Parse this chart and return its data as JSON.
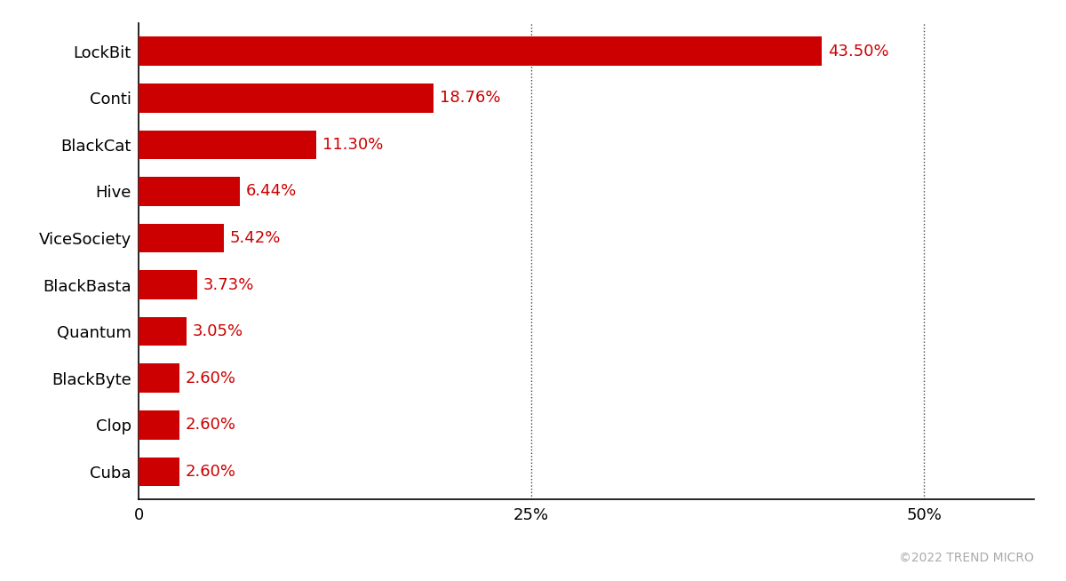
{
  "categories": [
    "Cuba",
    "Clop",
    "BlackByte",
    "Quantum",
    "BlackBasta",
    "ViceSociety",
    "Hive",
    "BlackCat",
    "Conti",
    "LockBit"
  ],
  "values": [
    2.6,
    2.6,
    2.6,
    3.05,
    3.73,
    5.42,
    6.44,
    11.3,
    18.76,
    43.5
  ],
  "labels": [
    "2.60%",
    "2.60%",
    "2.60%",
    "3.05%",
    "3.73%",
    "5.42%",
    "6.44%",
    "11.30%",
    "18.76%",
    "43.50%"
  ],
  "bar_color": "#cc0000",
  "label_color": "#cc0000",
  "background_color": "#ffffff",
  "xticks": [
    0,
    25,
    50
  ],
  "xtick_labels": [
    "0",
    "25%",
    "50%"
  ],
  "xlim": [
    0,
    57
  ],
  "gridline_color": "#444444",
  "gridline_style": ":",
  "copyright_text": "©2022 TREND MICRO",
  "copyright_color": "#aaaaaa",
  "label_fontsize": 13,
  "tick_fontsize": 13,
  "category_fontsize": 13,
  "copyright_fontsize": 10,
  "bar_height": 0.62
}
